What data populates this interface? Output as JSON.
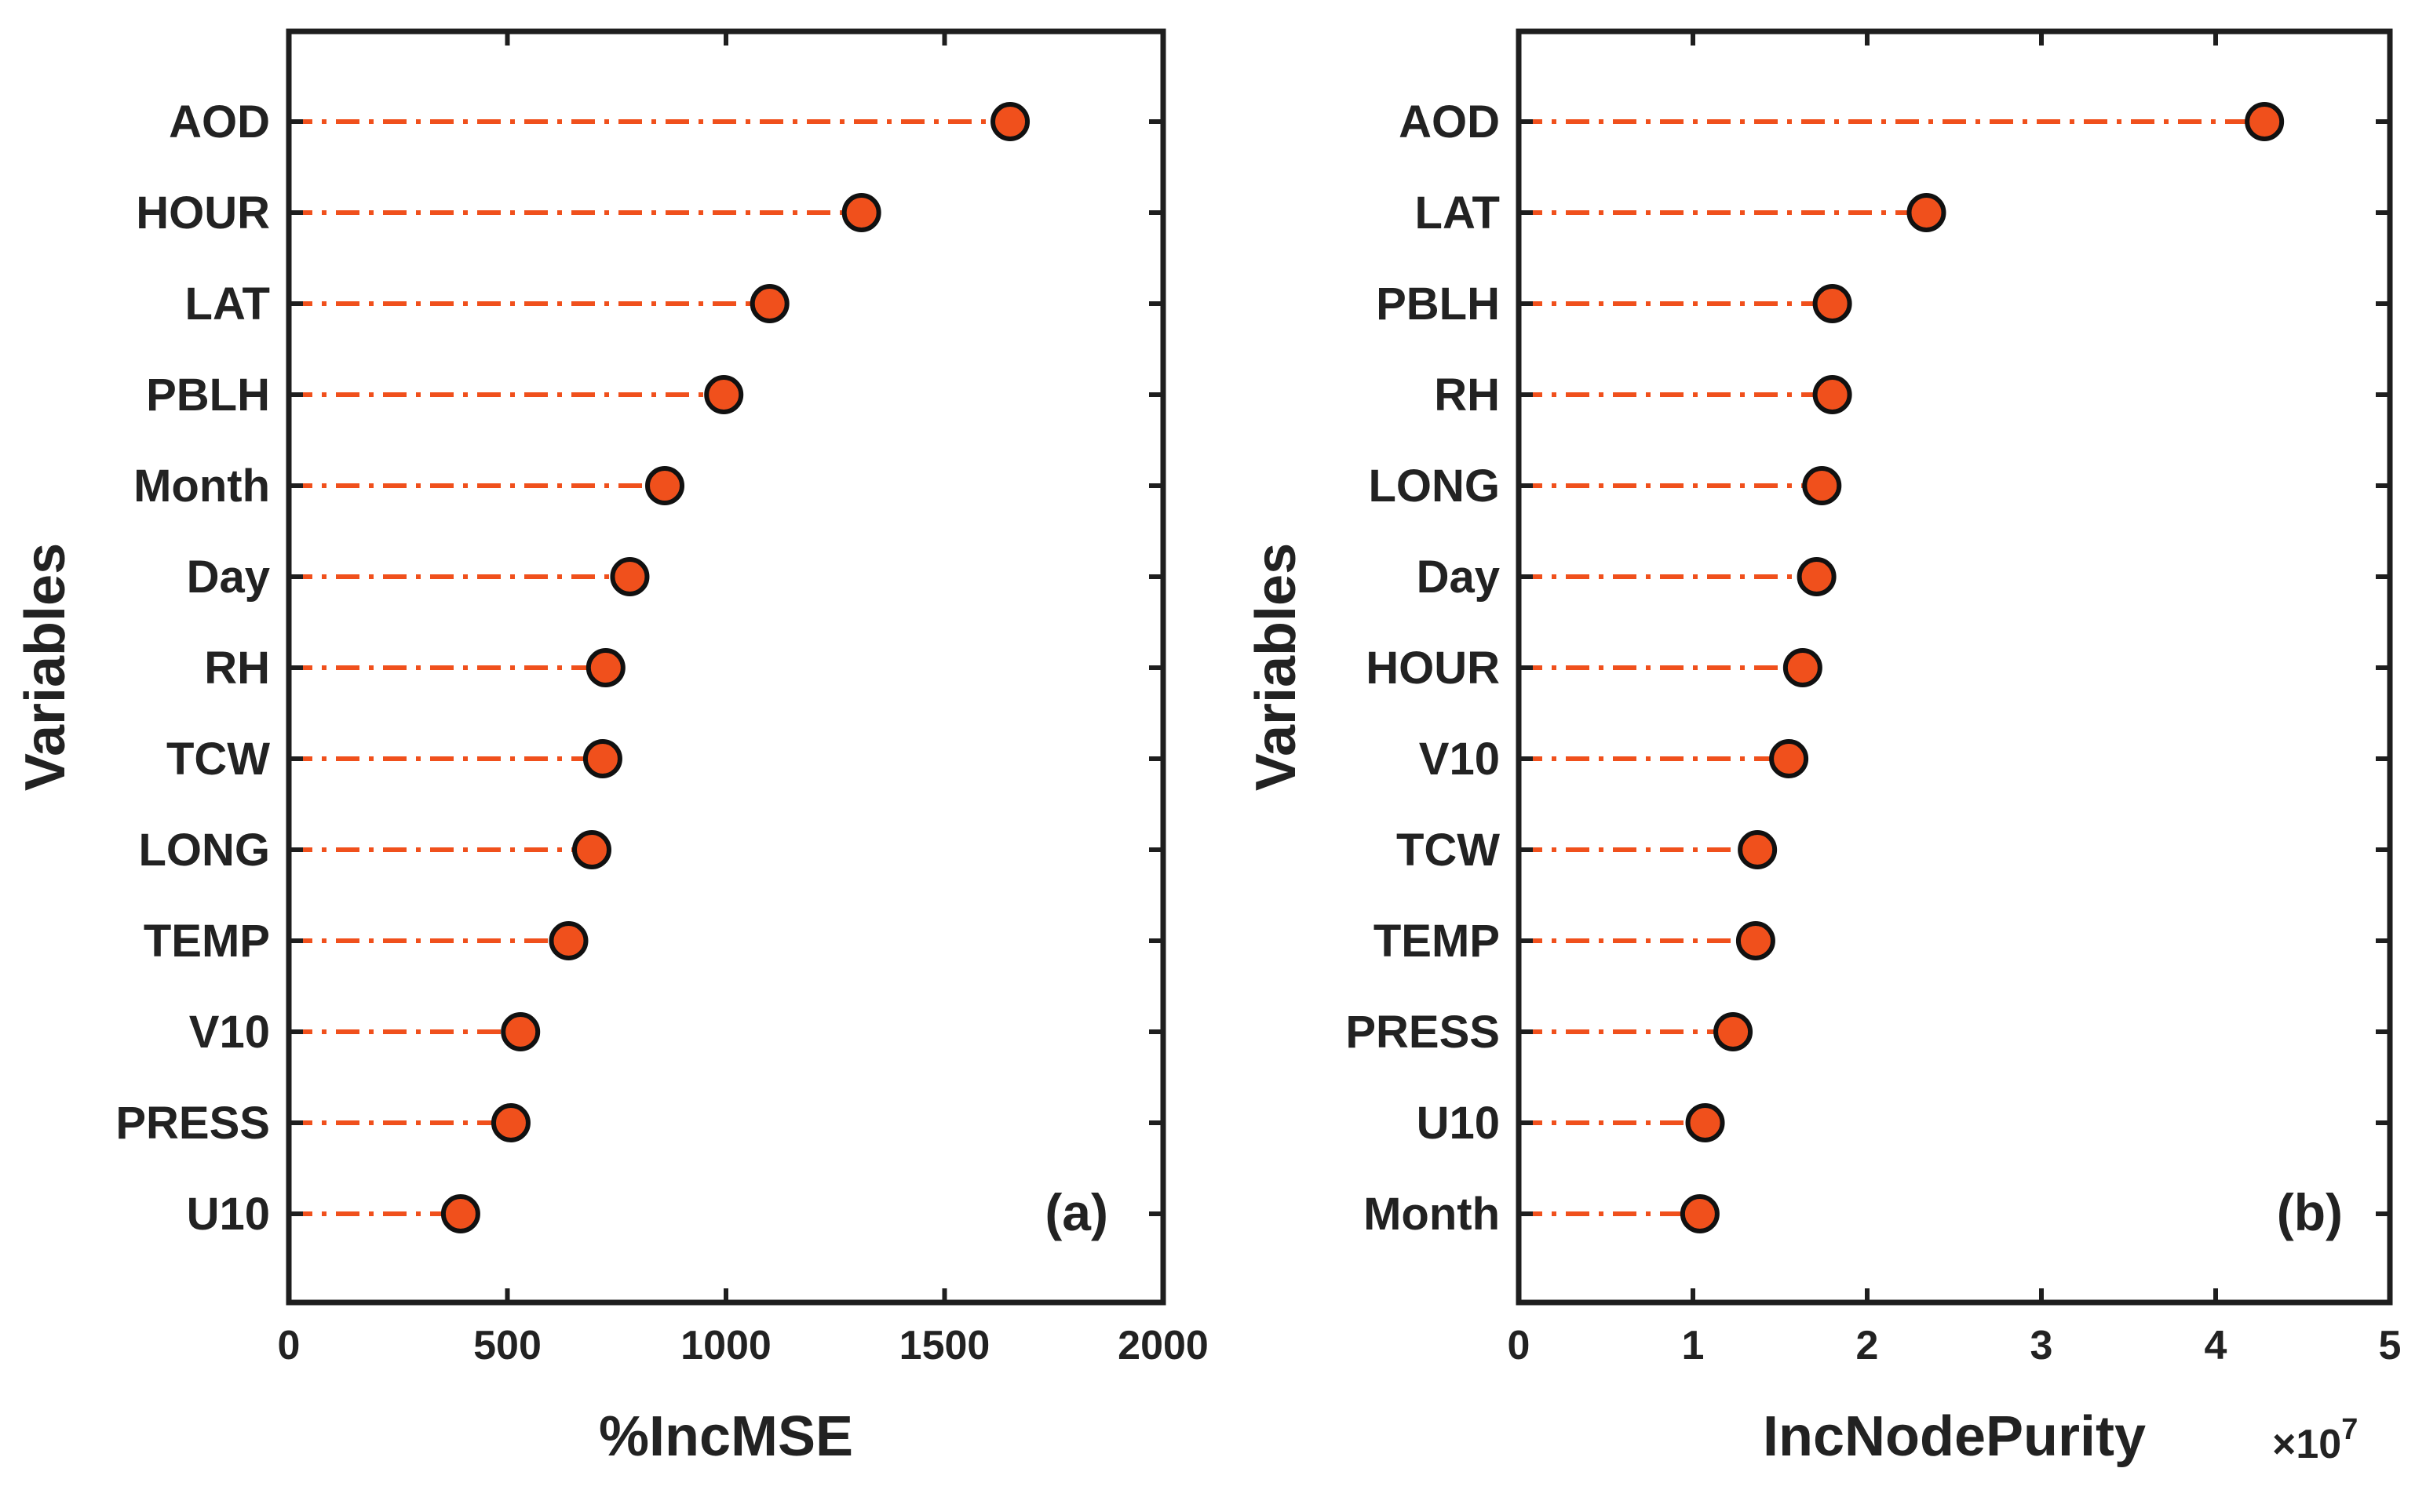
{
  "colors": {
    "marker": "#f0501c",
    "stem": "#f0501c",
    "axis": "#1e1e1e",
    "text": "#222222"
  },
  "chart_data": [
    {
      "type": "scatter",
      "style": "lollipop",
      "panel_label": "(a)",
      "xlabel": "%IncMSE",
      "ylabel": "Variables",
      "xlim": [
        0,
        2000
      ],
      "xticks": [
        "0",
        "500",
        "1000",
        "1500",
        "2000"
      ],
      "categories": [
        "AOD",
        "HOUR",
        "LAT",
        "PBLH",
        "Month",
        "Day",
        "RH",
        "TCW",
        "LONG",
        "TEMP",
        "V10",
        "PRESS",
        "U10"
      ],
      "values": [
        1650,
        1310,
        1100,
        995,
        860,
        780,
        725,
        718,
        693,
        640,
        530,
        508,
        393
      ]
    },
    {
      "type": "scatter",
      "style": "lollipop",
      "panel_label": "(b)",
      "xlabel": "IncNodePurity",
      "ylabel": "Variables",
      "xlim": [
        0,
        5
      ],
      "xticks": [
        "0",
        "1",
        "2",
        "3",
        "4",
        "5"
      ],
      "x_multiplier": "×10",
      "x_multiplier_exponent": "7",
      "categories": [
        "AOD",
        "LAT",
        "PBLH",
        "RH",
        "LONG",
        "Day",
        "HOUR",
        "V10",
        "TCW",
        "TEMP",
        "PRESS",
        "U10",
        "Month"
      ],
      "values": [
        4.28,
        2.34,
        1.8,
        1.8,
        1.74,
        1.71,
        1.63,
        1.55,
        1.37,
        1.36,
        1.23,
        1.07,
        1.04
      ]
    }
  ]
}
